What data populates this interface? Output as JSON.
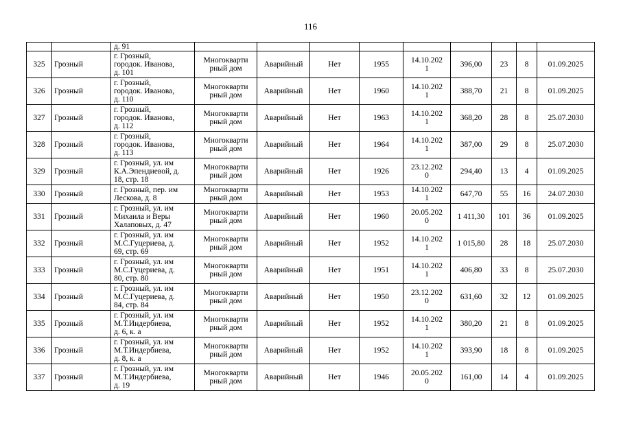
{
  "page_number": "116",
  "continuation_row": {
    "address_tail": "д. 91"
  },
  "rows": [
    {
      "n": "325",
      "city": "Грозный",
      "address": "г. Грозный,\nгородок. Иванова,\nд. 101",
      "type": "Многокварти\nрный дом",
      "status": "Аварийный",
      "flag": "Нет",
      "year": "1955",
      "date": "14.10.202\n1",
      "area": "396,00",
      "residents": "23",
      "apts": "8",
      "deadline": "01.09.2025"
    },
    {
      "n": "326",
      "city": "Грозный",
      "address": "г. Грозный,\nгородок. Иванова,\nд. 110",
      "type": "Многокварти\nрный дом",
      "status": "Аварийный",
      "flag": "Нет",
      "year": "1960",
      "date": "14.10.202\n1",
      "area": "388,70",
      "residents": "21",
      "apts": "8",
      "deadline": "01.09.2025"
    },
    {
      "n": "327",
      "city": "Грозный",
      "address": "г. Грозный,\nгородок. Иванова,\nд. 112",
      "type": "Многокварти\nрный дом",
      "status": "Аварийный",
      "flag": "Нет",
      "year": "1963",
      "date": "14.10.202\n1",
      "area": "368,20",
      "residents": "28",
      "apts": "8",
      "deadline": "25.07.2030"
    },
    {
      "n": "328",
      "city": "Грозный",
      "address": "г. Грозный,\nгородок. Иванова,\nд. 113",
      "type": "Многокварти\nрный дом",
      "status": "Аварийный",
      "flag": "Нет",
      "year": "1964",
      "date": "14.10.202\n1",
      "area": "387,00",
      "residents": "29",
      "apts": "8",
      "deadline": "25.07.2030"
    },
    {
      "n": "329",
      "city": "Грозный",
      "address": "г. Грозный, ул. им\nК.А.Эпендиевой, д.\n18, стр. 18",
      "type": "Многокварти\nрный дом",
      "status": "Аварийный",
      "flag": "Нет",
      "year": "1926",
      "date": "23.12.202\n0",
      "area": "294,40",
      "residents": "13",
      "apts": "4",
      "deadline": "01.09.2025"
    },
    {
      "n": "330",
      "city": "Грозный",
      "address": "г. Грозный, пер. им\nЛескова, д. 8",
      "type": "Многокварти\nрный дом",
      "status": "Аварийный",
      "flag": "Нет",
      "year": "1953",
      "date": "14.10.202\n1",
      "area": "647,70",
      "residents": "55",
      "apts": "16",
      "deadline": "24.07.2030",
      "short": true
    },
    {
      "n": "331",
      "city": "Грозный",
      "address": "г. Грозный, ул. им\nМихаила и Веры\nХалаповых, д. 47",
      "type": "Многокварти\nрный дом",
      "status": "Аварийный",
      "flag": "Нет",
      "year": "1960",
      "date": "20.05.202\n0",
      "area": "1 411,30",
      "residents": "101",
      "apts": "36",
      "deadline": "01.09.2025"
    },
    {
      "n": "332",
      "city": "Грозный",
      "address": "г. Грозный, ул. им\nМ.С.Гуцериева, д.\n69, стр. 69",
      "type": "Многокварти\nрный дом",
      "status": "Аварийный",
      "flag": "Нет",
      "year": "1952",
      "date": "14.10.202\n1",
      "area": "1 015,80",
      "residents": "28",
      "apts": "18",
      "deadline": "25.07.2030"
    },
    {
      "n": "333",
      "city": "Грозный",
      "address": "г. Грозный, ул. им\nМ.С.Гуцериева, д.\n80, стр. 80",
      "type": "Многокварти\nрный дом",
      "status": "Аварийный",
      "flag": "Нет",
      "year": "1951",
      "date": "14.10.202\n1",
      "area": "406,80",
      "residents": "33",
      "apts": "8",
      "deadline": "25.07.2030"
    },
    {
      "n": "334",
      "city": "Грозный",
      "address": "г. Грозный, ул. им\nМ.С.Гуцериева, д.\n84, стр. 84",
      "type": "Многокварти\nрный дом",
      "status": "Аварийный",
      "flag": "Нет",
      "year": "1950",
      "date": "23.12.202\n0",
      "area": "631,60",
      "residents": "32",
      "apts": "12",
      "deadline": "01.09.2025"
    },
    {
      "n": "335",
      "city": "Грозный",
      "address": "г. Грозный, ул. им\nМ.Т.Индербиева,\nд. 6, к. а",
      "type": "Многокварти\nрный дом",
      "status": "Аварийный",
      "flag": "Нет",
      "year": "1952",
      "date": "14.10.202\n1",
      "area": "380,20",
      "residents": "21",
      "apts": "8",
      "deadline": "01.09.2025"
    },
    {
      "n": "336",
      "city": "Грозный",
      "address": "г. Грозный, ул. им\nМ.Т.Индербиева,\nд. 8, к. а",
      "type": "Многокварти\nрный дом",
      "status": "Аварийный",
      "flag": "Нет",
      "year": "1952",
      "date": "14.10.202\n1",
      "area": "393,90",
      "residents": "18",
      "apts": "8",
      "deadline": "01.09.2025"
    },
    {
      "n": "337",
      "city": "Грозный",
      "address": "г. Грозный, ул. им\nМ.Т.Индербиева,\nд. 19",
      "type": "Многокварти\nрный дом",
      "status": "Аварийный",
      "flag": "Нет",
      "year": "1946",
      "date": "20.05.202\n0",
      "area": "161,00",
      "residents": "14",
      "apts": "4",
      "deadline": "01.09.2025"
    }
  ]
}
